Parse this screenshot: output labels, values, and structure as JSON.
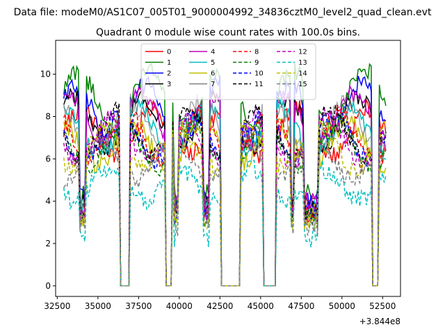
{
  "chart_data": {
    "type": "line",
    "suptitle": "Data file: modeM0/AS1C07_005T01_9000004992_34836cztM0_level2_quad_clean.evt",
    "title": "Quadrant 0 module wise count rates with 100.0s bins.",
    "xlabel": "",
    "ylabel": "",
    "x_offset_text": "+3.844e8",
    "xlim": [
      32400,
      53600
    ],
    "ylim": [
      -0.5,
      11.6
    ],
    "x_ticks": [
      32500,
      35000,
      37500,
      40000,
      42500,
      45000,
      47500,
      50000,
      52500
    ],
    "x_tick_labels": [
      "32500",
      "35000",
      "37500",
      "40000",
      "42500",
      "45000",
      "47500",
      "50000",
      "52500"
    ],
    "y_ticks": [
      0,
      2,
      4,
      6,
      8,
      10
    ],
    "y_tick_labels": [
      "0",
      "2",
      "4",
      "6",
      "8",
      "10"
    ],
    "legend_location": "upper center",
    "legend_columns": 4,
    "grid": false,
    "bin_seconds": 100,
    "active_intervals": [
      [
        32900,
        36300
      ],
      [
        37000,
        39100
      ],
      [
        39600,
        42500
      ],
      [
        43800,
        45100
      ],
      [
        46000,
        51800
      ],
      [
        52300,
        52700
      ]
    ],
    "series": [
      {
        "name": "0",
        "color": "#ff0000",
        "dash": "solid",
        "level": 7.9
      },
      {
        "name": "1",
        "color": "#008000",
        "dash": "solid",
        "level": 9.6
      },
      {
        "name": "2",
        "color": "#0000ff",
        "dash": "solid",
        "level": 9.0
      },
      {
        "name": "3",
        "color": "#000000",
        "dash": "solid",
        "level": 8.4
      },
      {
        "name": "4",
        "color": "#bf00bf",
        "dash": "solid",
        "level": 8.6
      },
      {
        "name": "5",
        "color": "#00bfbf",
        "dash": "solid",
        "level": 8.0
      },
      {
        "name": "6",
        "color": "#bfbf00",
        "dash": "solid",
        "level": 7.3
      },
      {
        "name": "7",
        "color": "#808080",
        "dash": "solid",
        "level": 8.2
      },
      {
        "name": "8",
        "color": "#ff0000",
        "dash": "dashed",
        "level": 7.7
      },
      {
        "name": "9",
        "color": "#008000",
        "dash": "dashed",
        "level": 7.2
      },
      {
        "name": "10",
        "color": "#0000ff",
        "dash": "dashed",
        "level": 7.6
      },
      {
        "name": "11",
        "color": "#000000",
        "dash": "dashed",
        "level": 7.8
      },
      {
        "name": "12",
        "color": "#bf00bf",
        "dash": "dashed",
        "level": 7.5
      },
      {
        "name": "13",
        "color": "#00bfbf",
        "dash": "dashed",
        "level": 5.2
      },
      {
        "name": "14",
        "color": "#bfbf00",
        "dash": "dashed",
        "level": 7.1
      },
      {
        "name": "15",
        "color": "#808080",
        "dash": "dashed",
        "level": 6.5
      }
    ]
  }
}
